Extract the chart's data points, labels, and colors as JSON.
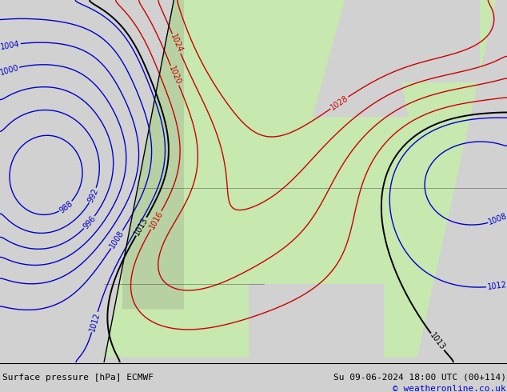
{
  "title_left": "Surface pressure [hPa] ECMWF",
  "title_right": "Su 09-06-2024 18:00 UTC (00+114)",
  "copyright": "© weatheronline.co.uk",
  "bg_color": "#d0d0d0",
  "land_color": "#c8e8b0",
  "mountain_color": "#a8a8a8",
  "isobar_black": "#000000",
  "isobar_blue": "#0000cc",
  "isobar_red": "#cc0000",
  "border_color": "#444444",
  "label_fs": 7,
  "footer_fs": 8,
  "copy_fs": 8,
  "fig_w": 6.34,
  "fig_h": 4.9,
  "dpi": 100,
  "lev_blue": [
    988,
    992,
    996,
    1000,
    1004,
    1008,
    1012
  ],
  "lev_black": [
    1013
  ],
  "lev_red": [
    1016,
    1020,
    1024,
    1028
  ]
}
